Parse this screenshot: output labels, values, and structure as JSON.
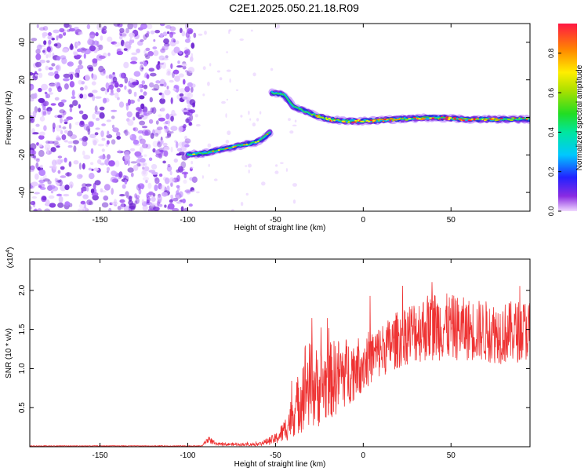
{
  "page": {
    "title": "C2E1.2025.050.21.18.R09"
  },
  "chart_data": [
    {
      "type": "heatmap",
      "xlabel": "Height of straight line (km)",
      "ylabel": "Frequency (Hz)",
      "xlim": [
        -190,
        95
      ],
      "ylim": [
        -50,
        50
      ],
      "x_ticks": [
        -150,
        -100,
        -50,
        0,
        50
      ],
      "y_ticks": [
        -40,
        -20,
        0,
        20,
        40
      ],
      "colorbar": {
        "label": "Normalized spectral amplitude",
        "range": [
          0,
          0.95
        ],
        "ticks": [
          "0.0",
          "0.2",
          "0.4",
          "0.6",
          "0.8"
        ],
        "tick_values": [
          0,
          0.2,
          0.4,
          0.6,
          0.8
        ]
      },
      "trace": [
        {
          "x": -100,
          "y": -20
        },
        {
          "x": -90,
          "y": -19
        },
        {
          "x": -80,
          "y": -17
        },
        {
          "x": -70,
          "y": -15
        },
        {
          "x": -60,
          "y": -13
        },
        {
          "x": -53,
          "y": -8
        },
        {
          "x": -52,
          "y": 13
        },
        {
          "x": -45,
          "y": 12
        },
        {
          "x": -40,
          "y": 6
        },
        {
          "x": -30,
          "y": 2
        },
        {
          "x": -20,
          "y": -1
        },
        {
          "x": -10,
          "y": -2
        },
        {
          "x": 0,
          "y": -2
        },
        {
          "x": 20,
          "y": -1
        },
        {
          "x": 40,
          "y": 0
        },
        {
          "x": 60,
          "y": -1
        },
        {
          "x": 80,
          "y": -1
        },
        {
          "x": 95,
          "y": -1
        }
      ],
      "noise_region_x": [
        -190,
        -100
      ],
      "grid": false
    },
    {
      "type": "line",
      "xlabel": "Height of straight line (km)",
      "ylabel": "SNR (10 * v/v)",
      "y_multiplier": "(x10",
      "y_multiplier_exp": "4",
      "y_multiplier_close": ")",
      "xlim": [
        -190,
        95
      ],
      "ylim": [
        0,
        2.4
      ],
      "x_ticks": [
        -150,
        -100,
        -50,
        0,
        50
      ],
      "y_ticks": [
        "0.5",
        "1.0",
        "1.5",
        "2.0"
      ],
      "y_tick_values": [
        0.5,
        1.0,
        1.5,
        2.0
      ],
      "series_color": "#ee3333",
      "envelope": [
        {
          "x": -190,
          "mean": 0.01,
          "amp": 0.005
        },
        {
          "x": -92,
          "mean": 0.01,
          "amp": 0.005
        },
        {
          "x": -88,
          "mean": 0.1,
          "amp": 0.05
        },
        {
          "x": -84,
          "mean": 0.03,
          "amp": 0.02
        },
        {
          "x": -60,
          "mean": 0.03,
          "amp": 0.02
        },
        {
          "x": -50,
          "mean": 0.1,
          "amp": 0.07
        },
        {
          "x": -45,
          "mean": 0.2,
          "amp": 0.15
        },
        {
          "x": -38,
          "mean": 0.5,
          "amp": 0.35
        },
        {
          "x": -33,
          "mean": 0.8,
          "amp": 0.6
        },
        {
          "x": -25,
          "mean": 0.75,
          "amp": 0.5
        },
        {
          "x": -15,
          "mean": 0.9,
          "amp": 0.5
        },
        {
          "x": -5,
          "mean": 1.0,
          "amp": 0.4
        },
        {
          "x": 5,
          "mean": 1.15,
          "amp": 0.35
        },
        {
          "x": 15,
          "mean": 1.3,
          "amp": 0.35
        },
        {
          "x": 25,
          "mean": 1.45,
          "amp": 0.4
        },
        {
          "x": 40,
          "mean": 1.55,
          "amp": 0.45
        },
        {
          "x": 60,
          "mean": 1.5,
          "amp": 0.4
        },
        {
          "x": 80,
          "mean": 1.45,
          "amp": 0.4
        },
        {
          "x": 95,
          "mean": 1.5,
          "amp": 0.4
        }
      ],
      "grid": false
    }
  ]
}
